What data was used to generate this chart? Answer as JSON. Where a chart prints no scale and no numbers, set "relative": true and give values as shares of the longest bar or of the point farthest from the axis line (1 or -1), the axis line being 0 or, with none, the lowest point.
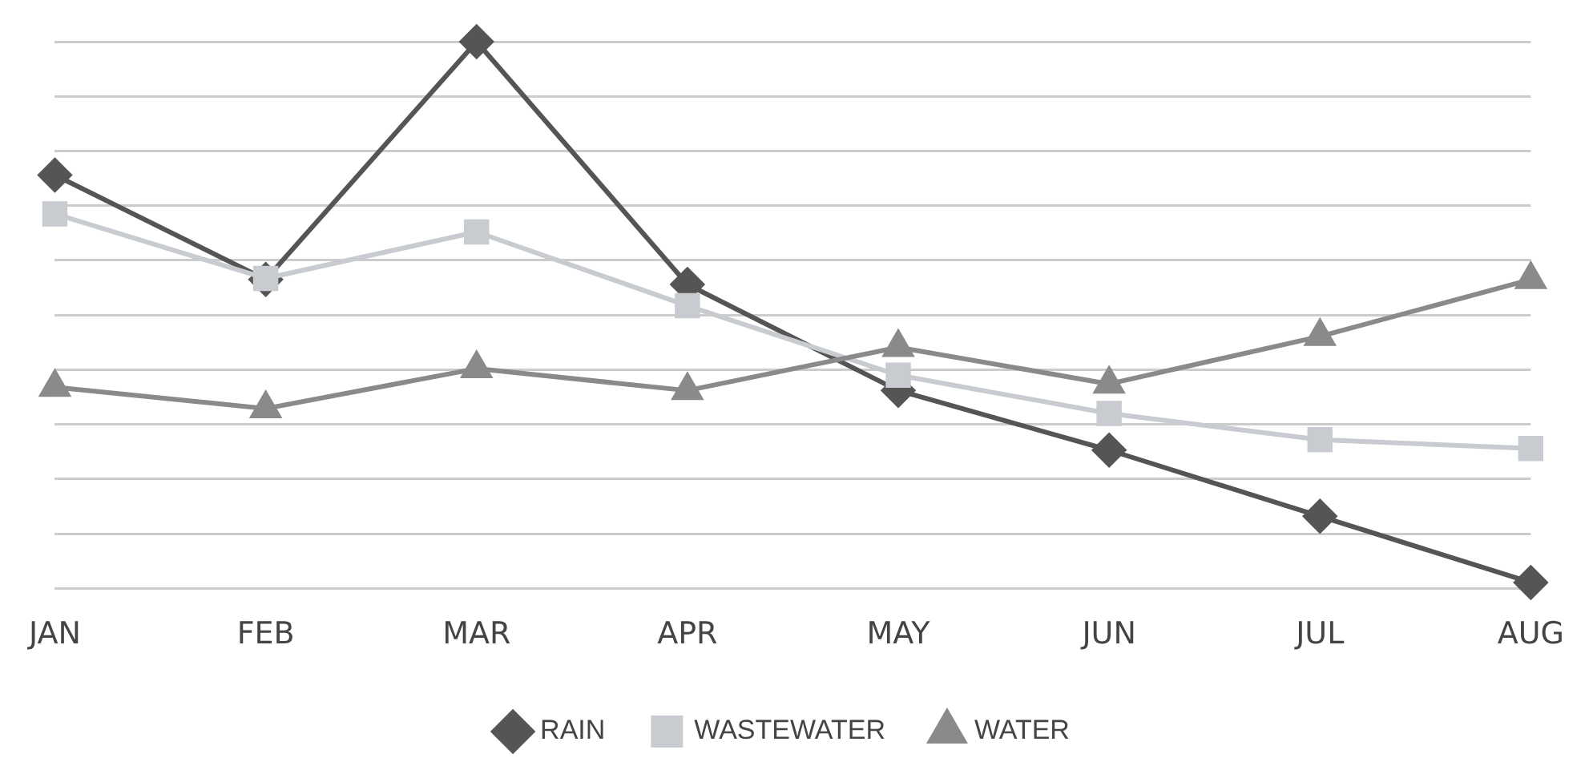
{
  "chart_data": {
    "type": "line",
    "relative": true,
    "categories": [
      "JAN",
      "FEB",
      "MAR",
      "APR",
      "MAY",
      "JUN",
      "JUL",
      "AUG"
    ],
    "series": [
      {
        "name": "RAIN",
        "color": "#555555",
        "marker": "diamond",
        "values": [
          0.756,
          0.565,
          1,
          0.556,
          0.362,
          0.253,
          0.132,
          0.011
        ]
      },
      {
        "name": "WASTEWATER",
        "color": "#c8ccd0",
        "marker": "square",
        "values": [
          0.685,
          0.567,
          0.652,
          0.517,
          0.39,
          0.32,
          0.272,
          0.256
        ]
      },
      {
        "name": "WATER",
        "color": "#8a8a8a",
        "marker": "triangle",
        "values": [
          0.368,
          0.329,
          0.402,
          0.362,
          0.441,
          0.374,
          0.461,
          0.565
        ]
      }
    ],
    "grid": "y",
    "legend": "bottom",
    "line_style": "solid"
  }
}
